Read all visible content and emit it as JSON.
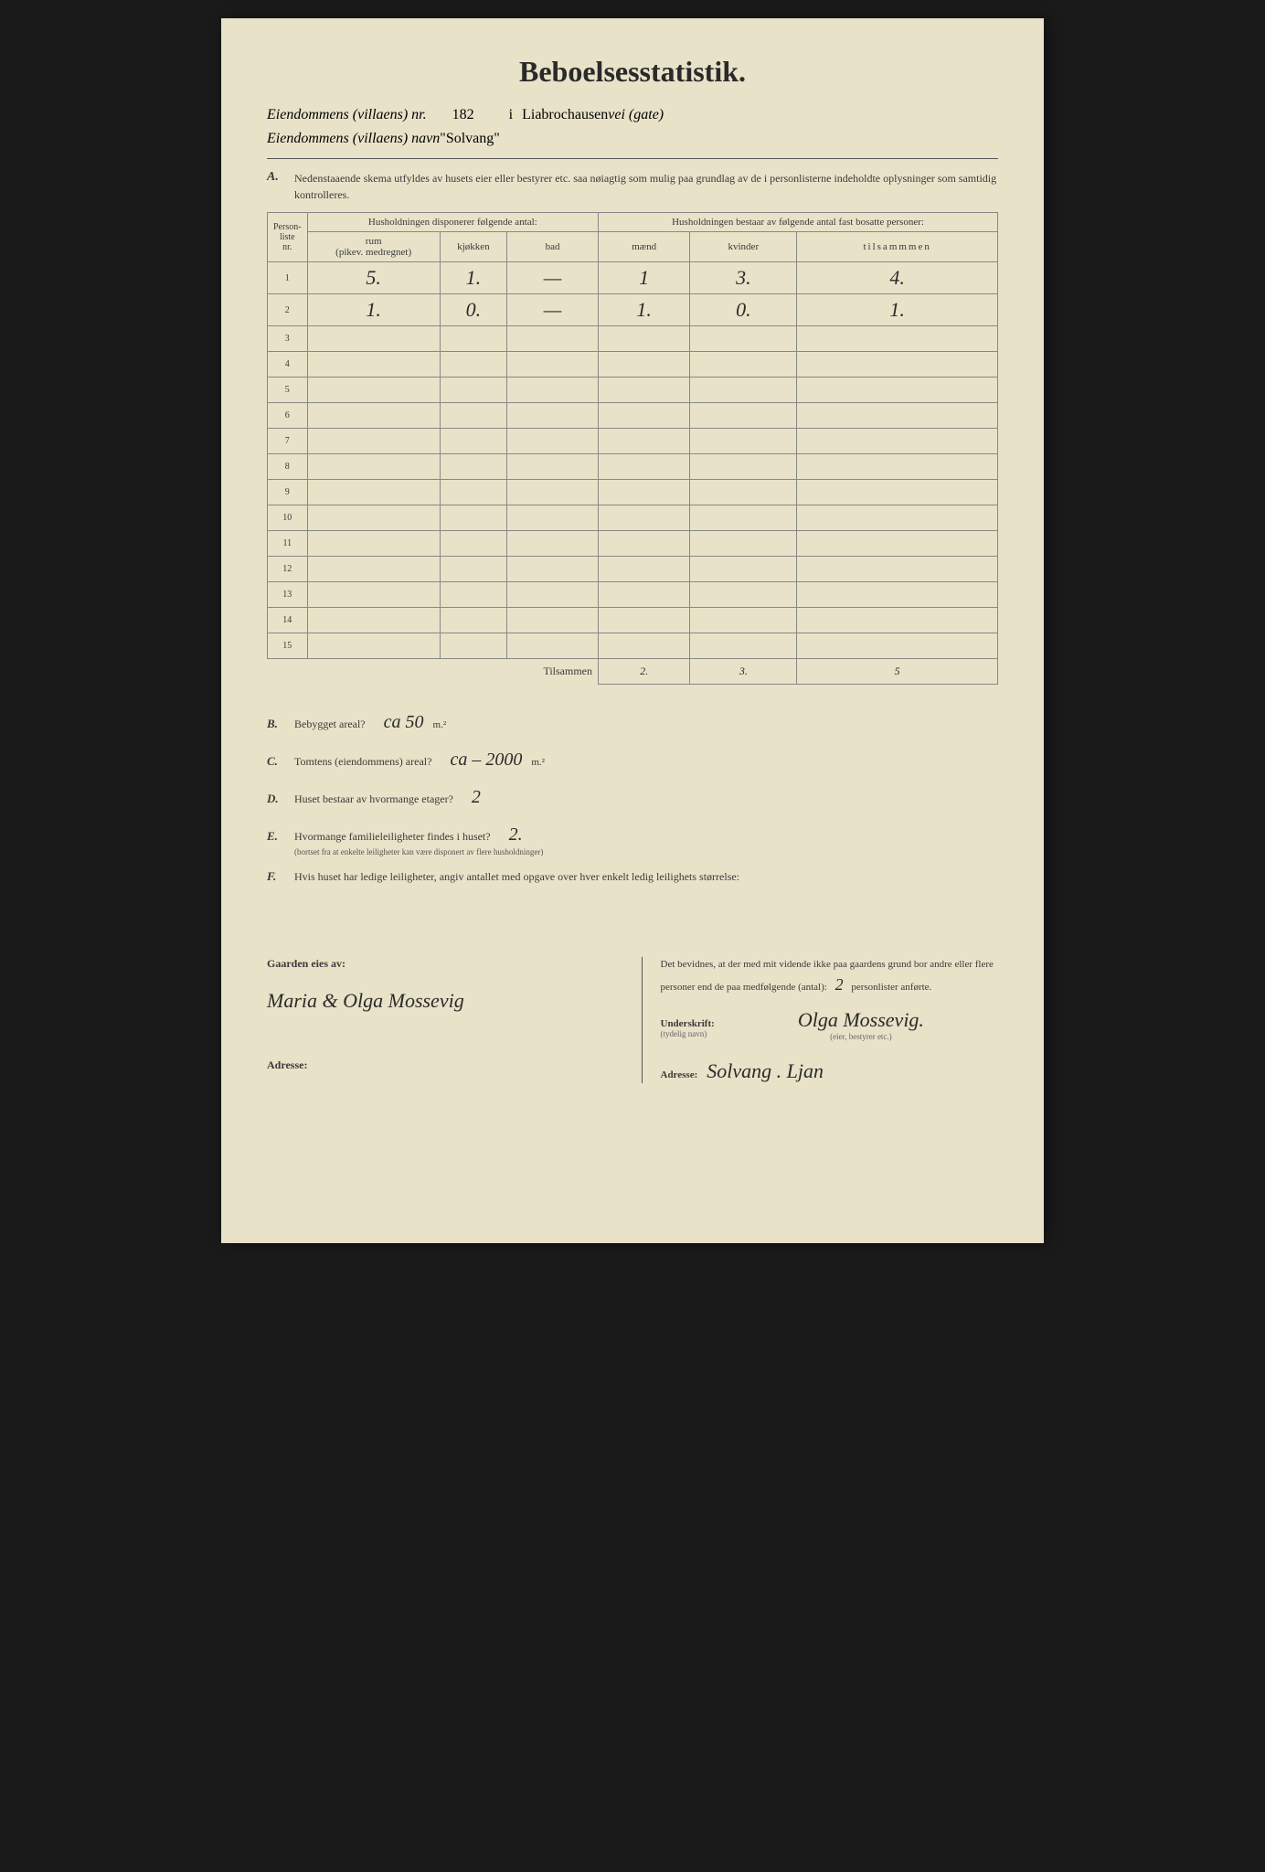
{
  "title": "Beboelsesstatistik.",
  "header": {
    "prop_nr_label": "Eiendommens (villaens) nr.",
    "prop_nr": "182",
    "i_label": "i",
    "street": "Liabrochausen",
    "street_suffix": "vei (gate)",
    "name_label": "Eiendommens (villaens) navn",
    "prop_name": "\"Solvang\""
  },
  "sectionA": {
    "letter": "A.",
    "text": "Nedenstaaende skema utfyldes av husets eier eller bestyrer etc. saa nøiagtig som mulig paa grundlag av de i personlisterne indeholdte oplysninger som samtidig kontrolleres."
  },
  "table": {
    "col_person": "Person-\nliste\nnr.",
    "col_disp": "Husholdningen disponerer følgende antal:",
    "col_rum": "rum\n(pikev. medregnet)",
    "col_kjokken": "kjøkken",
    "col_bad": "bad",
    "col_bestaar": "Husholdningen bestaar av følgende antal fast bosatte personer:",
    "col_maend": "mænd",
    "col_kvinder": "kvinder",
    "col_tilsammen": "tilsammmen",
    "rows": [
      {
        "n": "1",
        "rum": "5.",
        "kjokken": "1.",
        "bad": "—",
        "maend": "1",
        "kvinder": "3.",
        "tilsammen": "4."
      },
      {
        "n": "2",
        "rum": "1.",
        "kjokken": "0.",
        "bad": "—",
        "maend": "1.",
        "kvinder": "0.",
        "tilsammen": "1."
      },
      {
        "n": "3",
        "rum": "",
        "kjokken": "",
        "bad": "",
        "maend": "",
        "kvinder": "",
        "tilsammen": ""
      },
      {
        "n": "4",
        "rum": "",
        "kjokken": "",
        "bad": "",
        "maend": "",
        "kvinder": "",
        "tilsammen": ""
      },
      {
        "n": "5",
        "rum": "",
        "kjokken": "",
        "bad": "",
        "maend": "",
        "kvinder": "",
        "tilsammen": ""
      },
      {
        "n": "6",
        "rum": "",
        "kjokken": "",
        "bad": "",
        "maend": "",
        "kvinder": "",
        "tilsammen": ""
      },
      {
        "n": "7",
        "rum": "",
        "kjokken": "",
        "bad": "",
        "maend": "",
        "kvinder": "",
        "tilsammen": ""
      },
      {
        "n": "8",
        "rum": "",
        "kjokken": "",
        "bad": "",
        "maend": "",
        "kvinder": "",
        "tilsammen": ""
      },
      {
        "n": "9",
        "rum": "",
        "kjokken": "",
        "bad": "",
        "maend": "",
        "kvinder": "",
        "tilsammen": ""
      },
      {
        "n": "10",
        "rum": "",
        "kjokken": "",
        "bad": "",
        "maend": "",
        "kvinder": "",
        "tilsammen": ""
      },
      {
        "n": "11",
        "rum": "",
        "kjokken": "",
        "bad": "",
        "maend": "",
        "kvinder": "",
        "tilsammen": ""
      },
      {
        "n": "12",
        "rum": "",
        "kjokken": "",
        "bad": "",
        "maend": "",
        "kvinder": "",
        "tilsammen": ""
      },
      {
        "n": "13",
        "rum": "",
        "kjokken": "",
        "bad": "",
        "maend": "",
        "kvinder": "",
        "tilsammen": ""
      },
      {
        "n": "14",
        "rum": "",
        "kjokken": "",
        "bad": "",
        "maend": "",
        "kvinder": "",
        "tilsammen": ""
      },
      {
        "n": "15",
        "rum": "",
        "kjokken": "",
        "bad": "",
        "maend": "",
        "kvinder": "",
        "tilsammen": ""
      }
    ],
    "total_label": "Tilsammen",
    "total": {
      "maend": "2.",
      "kvinder": "3.",
      "tilsammen": "5"
    }
  },
  "questions": {
    "B": {
      "letter": "B.",
      "text": "Bebygget areal?",
      "answer": "ca     50",
      "unit": "m.²"
    },
    "C": {
      "letter": "C.",
      "text": "Tomtens (eiendommens) areal?",
      "answer": "ca – 2000",
      "unit": "m.²"
    },
    "D": {
      "letter": "D.",
      "text": "Huset bestaar av hvormange etager?",
      "answer": "2",
      "unit": ""
    },
    "E": {
      "letter": "E.",
      "text": "Hvormange familieleiligheter findes i huset?",
      "answer": "2.",
      "unit": "",
      "sub": "(bortset fra at enkelte leiligheter kan være disponert av flere husholdninger)"
    },
    "F": {
      "letter": "F.",
      "text": "Hvis huset har ledige leiligheter, angiv antallet med opgave over hver enkelt ledig leilighets størrelse:",
      "answer": "",
      "unit": ""
    }
  },
  "footer": {
    "owner_label": "Gaarden eies av:",
    "owner_sig": "Maria & Olga Mossevig",
    "address_label": "Adresse:",
    "statement": "Det bevidnes, at der med mit vidende ikke paa gaardens grund bor andre eller flere personer end de paa medfølgende (antal):",
    "antal": "2",
    "stmt_suffix": "personlister anførte.",
    "underskrift_label": "Underskrift:",
    "underskrift_sub": "(tydelig navn)",
    "sig": "Olga Mossevig.",
    "sig_sub": "(eier, bestyrer etc.)",
    "address2_label": "Adresse:",
    "address2": "Solvang . Ljan"
  },
  "colors": {
    "paper": "#e8e2c8",
    "ink": "#2a2a2a",
    "rule": "#888"
  }
}
